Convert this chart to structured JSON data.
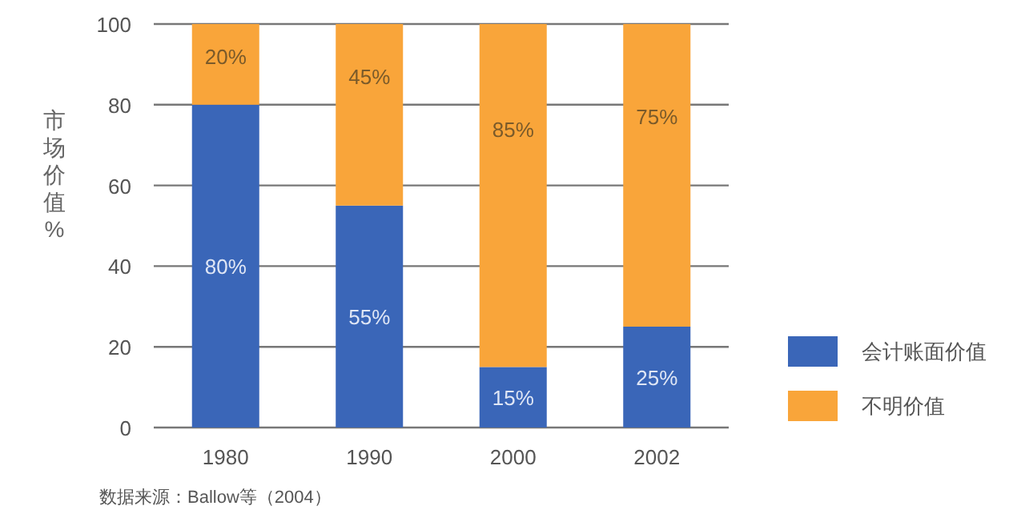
{
  "chart_data": {
    "type": "bar",
    "stacked": true,
    "ylabel": "市场价值%",
    "categories": [
      "1980",
      "1990",
      "2000",
      "2002"
    ],
    "series": [
      {
        "name": "会计账面价值",
        "color": "#3a66b8",
        "values": [
          80,
          55,
          15,
          25
        ],
        "value_labels": [
          "80%",
          "55%",
          "15%",
          "25%"
        ]
      },
      {
        "name": "不明价值",
        "color": "#f9a53a",
        "values": [
          20,
          45,
          85,
          75
        ],
        "value_labels": [
          "20%",
          "45%",
          "85%",
          "75%"
        ]
      }
    ],
    "ylim": [
      0,
      100
    ],
    "yticks": [
      0,
      20,
      40,
      60,
      80,
      100
    ],
    "grid": "y",
    "legend": "right",
    "annotations": [
      "数据来源：Ballow等（2004）"
    ]
  }
}
